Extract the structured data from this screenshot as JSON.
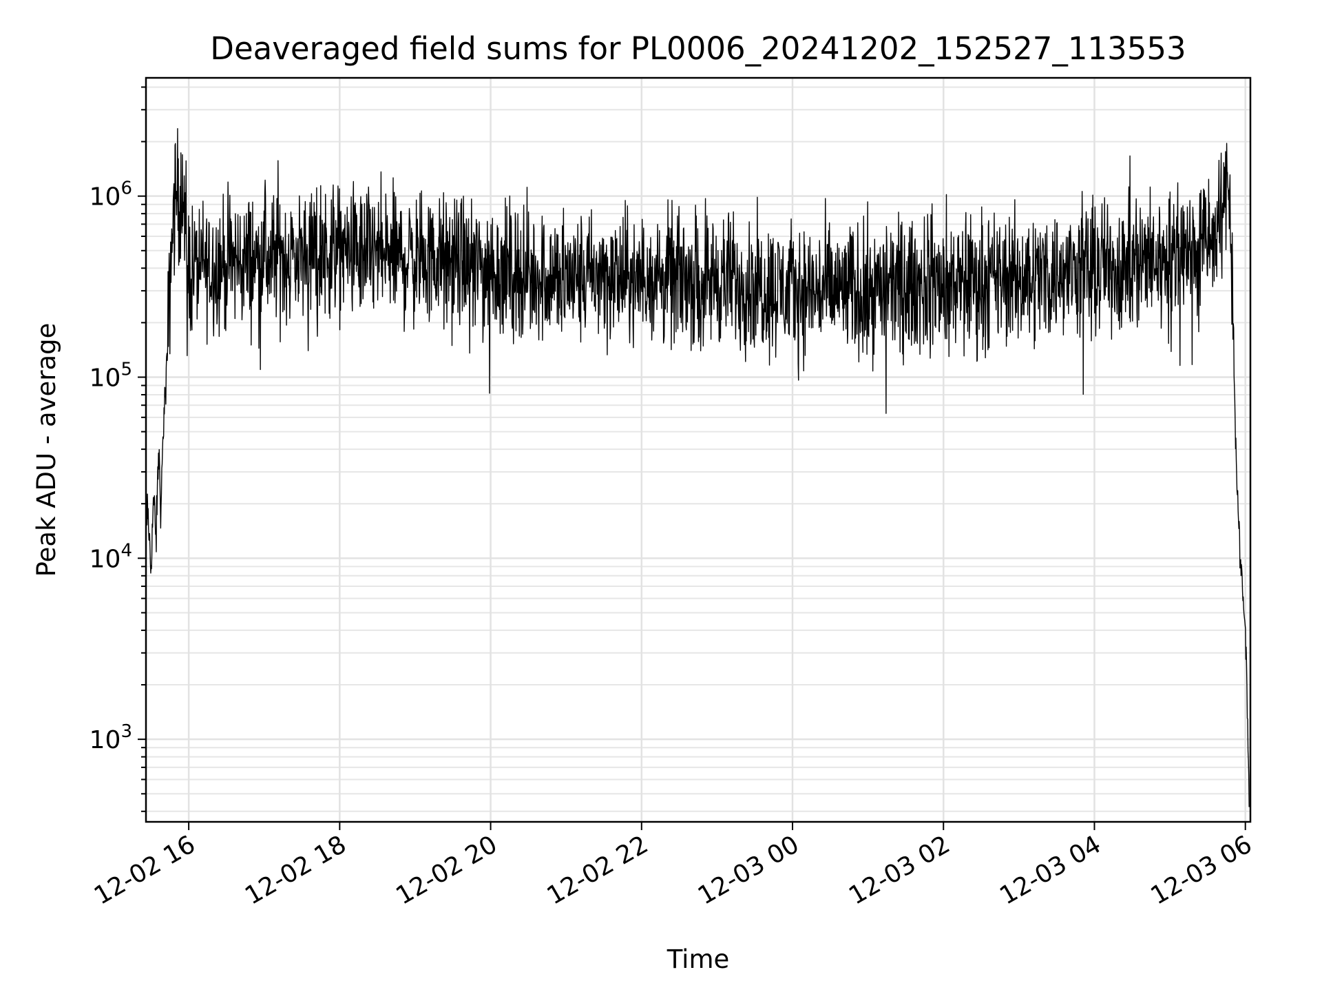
{
  "chart_data": {
    "type": "line",
    "title": "Deaveraged field sums for PL0006_20241202_152527_113553",
    "xlabel": "Time",
    "ylabel": "Peak ADU - average",
    "yscale": "log",
    "ylim": [
      350,
      4500000
    ],
    "xlim": [
      "2024-12-02 15:26",
      "2024-12-03 06:04"
    ],
    "grid": true,
    "x_ticks": [
      "12-02 16",
      "12-02 18",
      "12-02 20",
      "12-02 22",
      "12-03 00",
      "12-03 02",
      "12-03 04",
      "12-03 06"
    ],
    "y_ticks": [
      {
        "base": "10",
        "exp": "3",
        "value": 1000
      },
      {
        "base": "10",
        "exp": "4",
        "value": 10000
      },
      {
        "base": "10",
        "exp": "5",
        "value": 100000
      },
      {
        "base": "10",
        "exp": "6",
        "value": 1000000
      }
    ],
    "series": [
      {
        "color": "#000000",
        "points": [
          [
            "2024-12-02 15:26",
            20000
          ],
          [
            "2024-12-02 15:28",
            15000
          ],
          [
            "2024-12-02 15:30",
            9000
          ],
          [
            "2024-12-02 15:32",
            22000
          ],
          [
            "2024-12-02 15:34",
            12000
          ],
          [
            "2024-12-02 15:36",
            40000
          ],
          [
            "2024-12-02 15:38",
            18000
          ],
          [
            "2024-12-02 15:40",
            60000
          ],
          [
            "2024-12-02 15:42",
            90000
          ],
          [
            "2024-12-02 15:44",
            200000
          ],
          [
            "2024-12-02 15:46",
            500000
          ],
          [
            "2024-12-02 15:48",
            800000
          ],
          [
            "2024-12-02 15:50",
            1050000
          ],
          [
            "2024-12-02 15:52",
            950000
          ],
          [
            "2024-12-02 15:54",
            1000000
          ],
          [
            "2024-12-02 15:56",
            800000
          ],
          [
            "2024-12-02 15:58",
            500000
          ],
          [
            "2024-12-02 16:00",
            400000
          ],
          [
            "2024-12-02 17:00",
            450000
          ],
          [
            "2024-12-02 18:00",
            500000
          ],
          [
            "2024-12-02 19:00",
            450000
          ],
          [
            "2024-12-02 20:00",
            400000
          ],
          [
            "2024-12-02 21:00",
            350000
          ],
          [
            "2024-12-02 22:00",
            350000
          ],
          [
            "2024-12-02 23:00",
            350000
          ],
          [
            "2024-12-03 00:00",
            300000
          ],
          [
            "2024-12-03 01:00",
            300000
          ],
          [
            "2024-12-03 02:00",
            330000
          ],
          [
            "2024-12-03 03:00",
            350000
          ],
          [
            "2024-12-03 04:00",
            400000
          ],
          [
            "2024-12-03 05:00",
            450000
          ],
          [
            "2024-12-03 05:40",
            600000
          ],
          [
            "2024-12-03 05:46",
            1300000
          ],
          [
            "2024-12-03 05:48",
            1000000
          ],
          [
            "2024-12-03 05:50",
            300000
          ],
          [
            "2024-12-03 05:52",
            50000
          ],
          [
            "2024-12-03 05:54",
            20000
          ],
          [
            "2024-12-03 05:56",
            9000
          ],
          [
            "2024-12-03 05:58",
            6000
          ],
          [
            "2024-12-03 06:00",
            4000
          ],
          [
            "2024-12-03 06:02",
            1000
          ],
          [
            "2024-12-03 06:03",
            500
          ]
        ]
      }
    ]
  }
}
